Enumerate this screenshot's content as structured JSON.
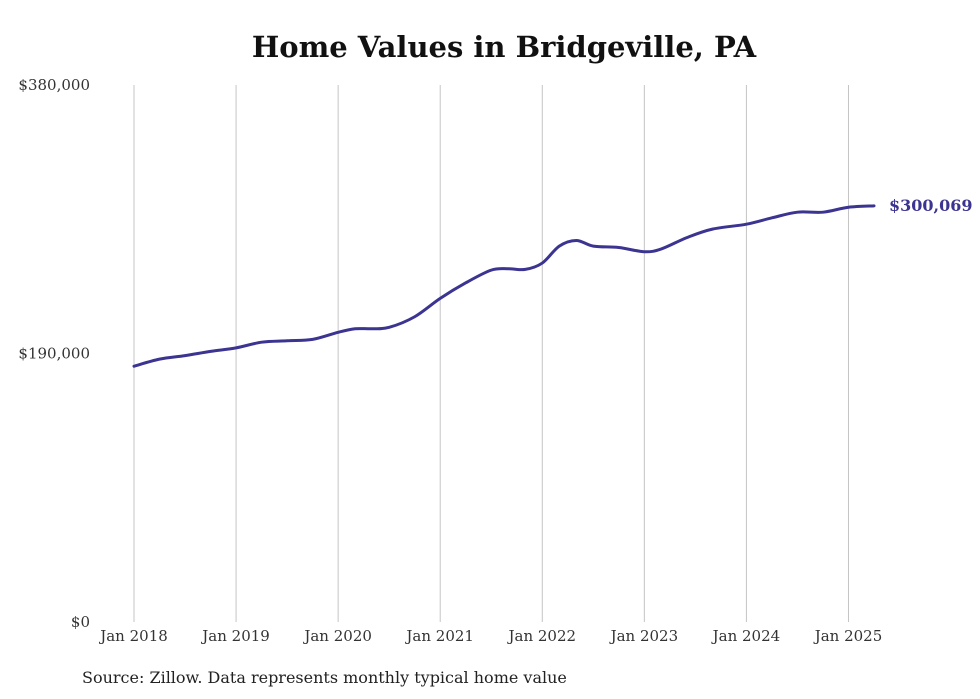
{
  "chart_data": {
    "type": "line",
    "title": "Home Values in Bridgeville, PA",
    "source": "Source: Zillow. Data represents monthly typical home value",
    "xlabel": "",
    "ylabel": "",
    "ylim": [
      0,
      380000
    ],
    "y_ticks": [
      {
        "value": 0,
        "label": "$0"
      },
      {
        "value": 190000,
        "label": "$190,000"
      },
      {
        "value": 380000,
        "label": "$380,000"
      }
    ],
    "x_ticks": [
      {
        "date": "2018-01",
        "label": "Jan 2018"
      },
      {
        "date": "2019-01",
        "label": "Jan 2019"
      },
      {
        "date": "2020-01",
        "label": "Jan 2020"
      },
      {
        "date": "2021-01",
        "label": "Jan 2021"
      },
      {
        "date": "2022-01",
        "label": "Jan 2022"
      },
      {
        "date": "2023-01",
        "label": "Jan 2023"
      },
      {
        "date": "2024-01",
        "label": "Jan 2024"
      },
      {
        "date": "2025-01",
        "label": "Jan 2025"
      }
    ],
    "grid": "vertical",
    "end_label": "$300,069",
    "color": "#3b3491",
    "series": [
      {
        "x": [
          "2018-01",
          "2018-04",
          "2018-07",
          "2018-10",
          "2019-01",
          "2019-04",
          "2019-07",
          "2019-10",
          "2020-01",
          "2020-03",
          "2020-05",
          "2020-07",
          "2020-10",
          "2021-01",
          "2021-04",
          "2021-07",
          "2021-09",
          "2021-11",
          "2022-01",
          "2022-03",
          "2022-05",
          "2022-07",
          "2022-10",
          "2023-01",
          "2023-03",
          "2023-06",
          "2023-09",
          "2024-01",
          "2024-04",
          "2024-07",
          "2024-10",
          "2025-01",
          "2025-04"
        ],
        "y": [
          181000,
          186000,
          188500,
          191500,
          194000,
          198000,
          199000,
          200000,
          205000,
          207500,
          207500,
          208500,
          216000,
          229000,
          240000,
          249000,
          250000,
          249500,
          254000,
          266000,
          270000,
          266000,
          265000,
          262000,
          264000,
          272000,
          278000,
          281500,
          286000,
          290000,
          290000,
          293500,
          294500
        ]
      }
    ]
  }
}
